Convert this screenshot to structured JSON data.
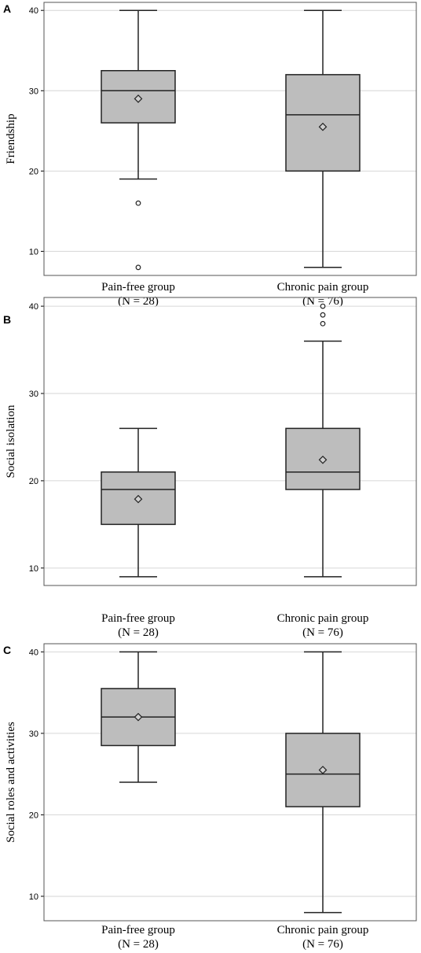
{
  "chart_data": [
    {
      "type": "box",
      "panel": "A",
      "ylabel": "Friendship",
      "ylim": [
        7,
        41
      ],
      "yticks": [
        10,
        20,
        30,
        40
      ],
      "grid": "horizontal",
      "categories": [
        {
          "label": "Pain-free group",
          "n_label": "(N = 28)",
          "min": 19,
          "q1": 26,
          "median": 30,
          "q3": 32.5,
          "max": 40,
          "mean": 29,
          "outliers": [
            16,
            8
          ]
        },
        {
          "label": "Chronic pain group",
          "n_label": "(N = 76)",
          "min": 8,
          "q1": 20,
          "median": 27,
          "q3": 32,
          "max": 40,
          "mean": 25.5,
          "outliers": []
        }
      ]
    },
    {
      "type": "box",
      "panel": "B",
      "ylabel": "Social isolation",
      "ylim": [
        8,
        41
      ],
      "yticks": [
        10,
        20,
        30,
        40
      ],
      "grid": "horizontal",
      "categories": [
        {
          "label": "Pain-free group",
          "n_label": "(N = 28)",
          "min": 9,
          "q1": 15,
          "median": 19,
          "q3": 21,
          "max": 26,
          "mean": 17.9,
          "outliers": []
        },
        {
          "label": "Chronic pain group",
          "n_label": "(N = 76)",
          "min": 9,
          "q1": 19,
          "median": 21,
          "q3": 26,
          "max": 36,
          "mean": 22.4,
          "outliers": [
            38,
            39,
            40
          ]
        }
      ]
    },
    {
      "type": "box",
      "panel": "C",
      "ylabel": "Social roles and activities",
      "ylim": [
        7,
        41
      ],
      "yticks": [
        10,
        20,
        30,
        40
      ],
      "grid": "horizontal",
      "categories": [
        {
          "label": "Pain-free group",
          "n_label": "(N = 28)",
          "min": 24,
          "q1": 28.5,
          "median": 32,
          "q3": 35.5,
          "max": 40,
          "mean": 32,
          "outliers": []
        },
        {
          "label": "Chronic pain group",
          "n_label": "(N = 76)",
          "min": 8,
          "q1": 21,
          "median": 25,
          "q3": 30,
          "max": 40,
          "mean": 25.5,
          "outliers": []
        }
      ]
    }
  ]
}
